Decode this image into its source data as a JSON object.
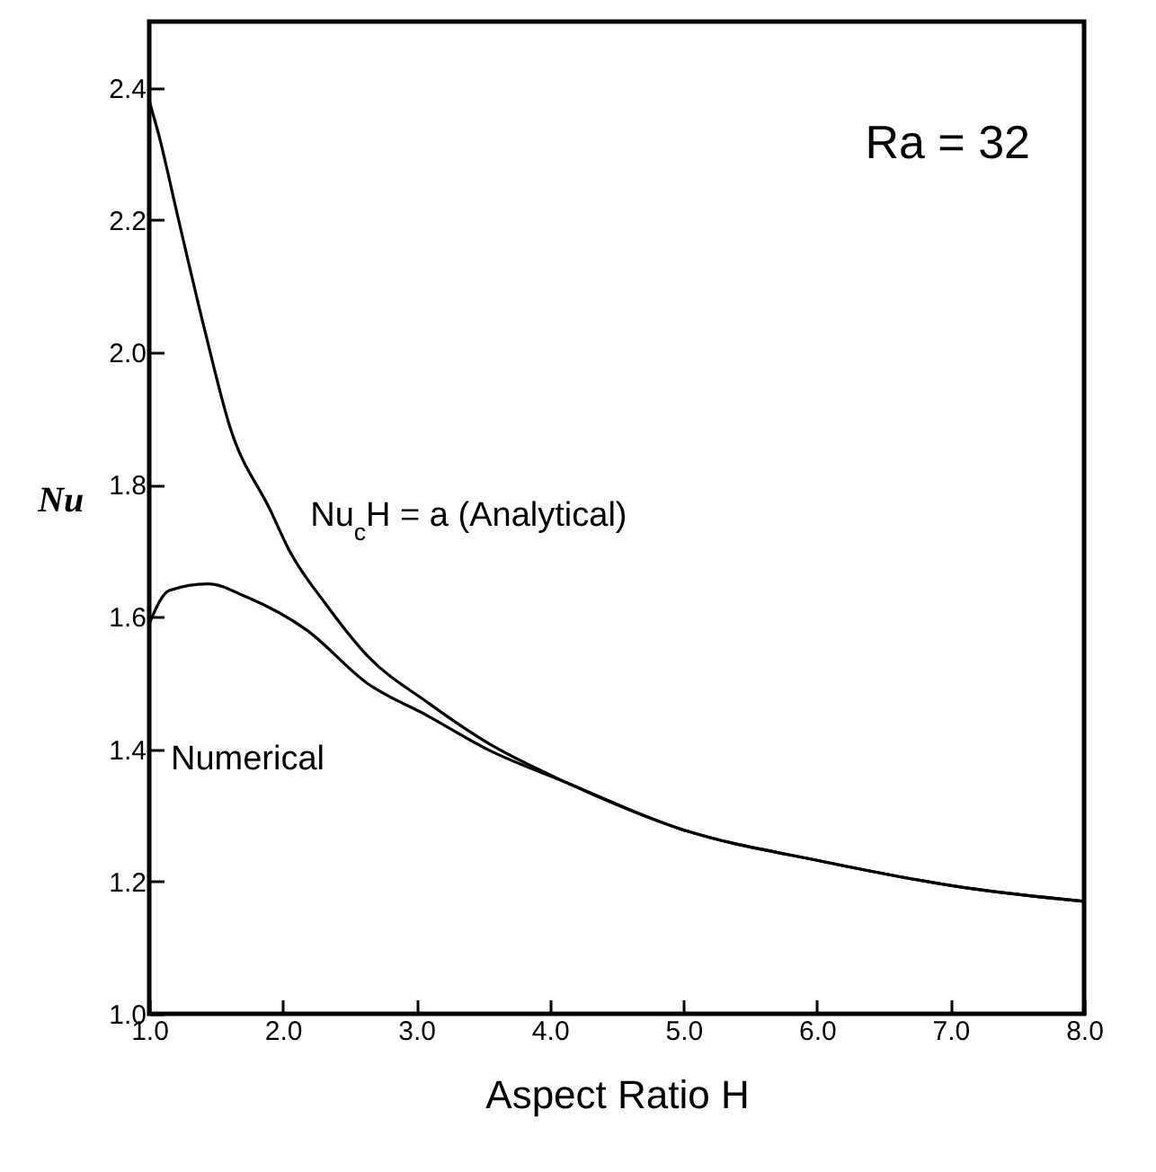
{
  "chart_data": {
    "type": "line",
    "xlabel": "Aspect Ratio H",
    "ylabel": "Nu",
    "xlim": [
      1.0,
      8.0
    ],
    "ylim": [
      1.0,
      2.5
    ],
    "xticks": [
      {
        "value": 1,
        "label": "1.0"
      },
      {
        "value": 2,
        "label": "2.0"
      },
      {
        "value": 3,
        "label": "3.0"
      },
      {
        "value": 4,
        "label": "4.0"
      },
      {
        "value": 5,
        "label": "5.0"
      },
      {
        "value": 6,
        "label": "6.0"
      },
      {
        "value": 7,
        "label": "7.0"
      },
      {
        "value": 8,
        "label": "8.0"
      }
    ],
    "yticks": [
      {
        "value": 1,
        "label": "1.0"
      },
      {
        "value": 1.2,
        "label": "1.2"
      },
      {
        "value": 1.4,
        "label": "1.4"
      },
      {
        "value": 1.6,
        "label": "1.6"
      },
      {
        "value": 1.8,
        "label": "1.8"
      },
      {
        "value": 2,
        "label": "2.0"
      },
      {
        "value": 2.2,
        "label": "2.2"
      },
      {
        "value": 2.4,
        "label": "2.4"
      }
    ],
    "grid": false,
    "marker": "none",
    "line_style": "solid",
    "annotations": [
      "Ra = 32"
    ],
    "series": [
      {
        "name": "Nu$_{c}$H = a (Analytical)",
        "color": "#000000",
        "x": [
          1.0,
          1.07,
          1.22,
          1.42,
          1.6,
          1.91,
          2.05,
          2.32,
          2.64,
          3.09,
          3.53,
          4.12,
          4.97,
          6.05,
          7.13,
          8.0
        ],
        "values": [
          2.38,
          2.33,
          2.2,
          2.03,
          1.89,
          1.76,
          1.7,
          1.62,
          1.54,
          1.47,
          1.41,
          1.35,
          1.28,
          1.23,
          1.19,
          1.17
        ]
      },
      {
        "name": "Numerical",
        "color": "#000000",
        "x": [
          1.0,
          1.15,
          1.44,
          1.73,
          2.18,
          2.63,
          3.09,
          3.53,
          4.12,
          4.97,
          6.05,
          7.13,
          8.0
        ],
        "values": [
          1.59,
          1.64,
          1.65,
          1.63,
          1.58,
          1.5,
          1.45,
          1.4,
          1.35,
          1.28,
          1.23,
          1.19,
          1.17
        ]
      }
    ]
  }
}
